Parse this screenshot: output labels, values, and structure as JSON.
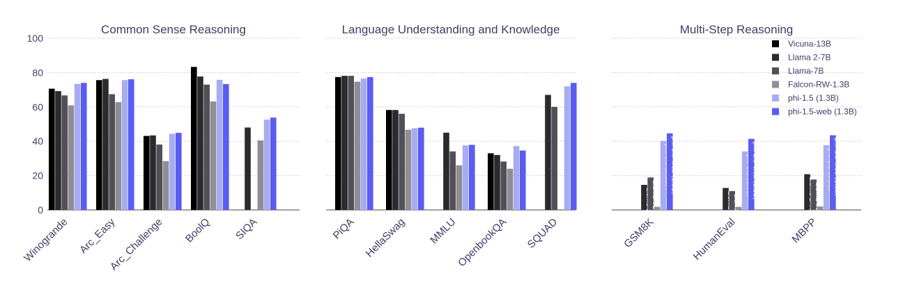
{
  "chart_data": {
    "type": "bar",
    "ylim": [
      0,
      100
    ],
    "yticks": [
      0,
      20,
      40,
      60,
      80,
      100
    ],
    "legend_position": "top-right",
    "grid": true,
    "series": [
      {
        "name": "Vicuna-13B",
        "color": "#000000"
      },
      {
        "name": "Llama 2-7B",
        "color": "#2b2b2e"
      },
      {
        "name": "Llama-7B",
        "color": "#505058"
      },
      {
        "name": "Falcon-RW-1.3B",
        "color": "#8e8e94"
      },
      {
        "name": "phi-1.5 (1.3B)",
        "color": "#a7acf2"
      },
      {
        "name": "phi-1.5-web (1.3B)",
        "color": "#5a5cf2"
      }
    ],
    "panels": [
      {
        "title": "Common Sense Reasoning",
        "categories": [
          "Winogrande",
          "Arc_Easy",
          "Arc_Challenge",
          "BoolQ",
          "SIQA"
        ],
        "values": [
          [
            70.6,
            69.2,
            66.7,
            60.9,
            73.4,
            74.0
          ],
          [
            75.6,
            76.3,
            67.4,
            62.8,
            75.6,
            76.1
          ],
          [
            43.1,
            43.4,
            38.1,
            28.4,
            44.4,
            44.9
          ],
          [
            83.3,
            77.7,
            73.0,
            63.2,
            75.8,
            73.3
          ],
          [
            0,
            48.0,
            0,
            40.5,
            52.6,
            53.8
          ]
        ]
      },
      {
        "title": "Language Understanding and Knowledge",
        "categories": [
          "PiQA",
          "HellaSwag",
          "MMLU",
          "OpenbookQA",
          "SQUAD"
        ],
        "values": [
          [
            77.4,
            78.1,
            78.1,
            74.7,
            76.6,
            77.4
          ],
          [
            58.2,
            58.2,
            56.0,
            46.7,
            47.6,
            47.9
          ],
          [
            0,
            45.0,
            34.1,
            26.0,
            37.6,
            37.9
          ],
          [
            33.0,
            32.0,
            28.2,
            24.0,
            37.2,
            34.6
          ],
          [
            0,
            67.0,
            60.0,
            0,
            72.0,
            74.0
          ]
        ]
      },
      {
        "title": "Multi-Step Reasoning",
        "categories": [
          "GSM8K",
          "HumanEval",
          "MBPP"
        ],
        "values": [
          [
            0,
            14.6,
            18.9,
            1.8,
            40.2,
            44.6
          ],
          [
            0,
            12.8,
            11.0,
            1.8,
            34.1,
            41.4
          ],
          [
            0,
            20.8,
            17.7,
            2.0,
            37.7,
            43.5
          ]
        ],
        "bar_labels": [
          [
            "",
            "Llama 2-7B",
            "Llama-7B",
            "",
            "phi-1.5 (1.3B)",
            "phi-1.5-web (1.3B)"
          ],
          [
            "",
            "Llama 2-7B",
            "Llama-7B",
            "",
            "phi-1.5 (1.3B)",
            "phi-1.5-web (1.3B)"
          ],
          [
            "",
            "Llama 2-7B",
            "Llama-7B",
            "",
            "phi-1.5 (1.3B)",
            "phi-1.5-web (1.3B)"
          ]
        ]
      }
    ]
  }
}
